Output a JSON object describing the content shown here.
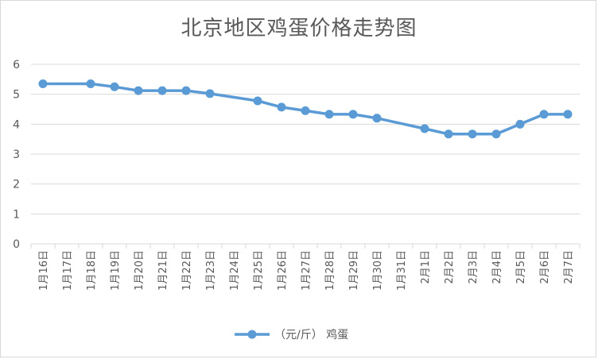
{
  "chart_data": {
    "type": "line",
    "title": "北京地区鸡蛋价格走势图",
    "xlabel": "",
    "ylabel": "",
    "ylim": [
      0,
      6
    ],
    "yticks": [
      0,
      1,
      2,
      3,
      4,
      5,
      6
    ],
    "grid": true,
    "legend_position": "bottom",
    "categories": [
      "1月16日",
      "1月17日",
      "1月18日",
      "1月19日",
      "1月20日",
      "1月21日",
      "1月22日",
      "1月23日",
      "1月24日",
      "1月25日",
      "1月26日",
      "1月27日",
      "1月28日",
      "1月29日",
      "1月30日",
      "1月31日",
      "2月1日",
      "2月2日",
      "2月3日",
      "2月4日",
      "2月5日",
      "2月6日",
      "2月7日"
    ],
    "series": [
      {
        "name": "（元/斤） 鸡蛋",
        "color": "#5b9bd5",
        "values": [
          5.35,
          null,
          5.35,
          5.25,
          5.12,
          5.12,
          5.12,
          5.02,
          null,
          4.78,
          4.57,
          4.45,
          4.33,
          4.33,
          4.2,
          null,
          3.85,
          3.67,
          3.67,
          3.67,
          4.0,
          4.33,
          4.33
        ]
      }
    ]
  }
}
